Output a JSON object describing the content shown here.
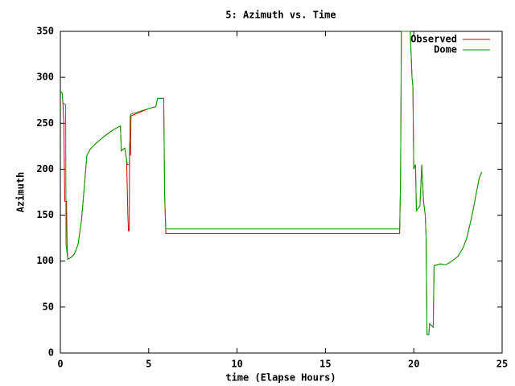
{
  "chart_data": {
    "type": "line",
    "title": "5: Azimuth vs. Time",
    "x_label": "time (Elapse Hours)",
    "y_label": "Azimuth",
    "xlim": [
      0,
      25
    ],
    "xticks": [
      0,
      5,
      10,
      15,
      20,
      25
    ],
    "ylim": [
      0,
      350
    ],
    "yticks": [
      0,
      50,
      100,
      150,
      200,
      250,
      300,
      350
    ],
    "grid": false,
    "legend": "top-right",
    "series": [
      {
        "name": "Observed",
        "color": "#cc0000",
        "x": [
          0,
          0.1,
          0.15,
          0.2,
          0.25,
          0.35,
          0.38,
          0.42,
          0.6,
          0.8,
          1.0,
          1.2,
          1.35,
          1.5,
          1.7,
          2.0,
          2.5,
          3.0,
          3.4,
          3.45,
          3.65,
          3.75,
          3.82,
          3.85,
          3.9,
          3.92,
          3.97,
          4.0,
          4.5,
          5.0,
          5.4,
          5.5,
          5.85,
          5.9,
          5.97,
          19.2,
          19.25,
          19.3,
          19.8,
          19.9,
          19.95,
          20.0,
          20.1,
          20.15,
          20.35,
          20.45,
          20.55,
          20.65,
          20.7,
          20.75,
          20.85,
          20.9,
          21.1,
          21.15,
          21.5,
          21.8,
          22.0,
          22.5,
          22.8,
          23.0,
          23.3,
          23.5,
          23.7,
          23.85
        ],
        "values": [
          285,
          283,
          270,
          250,
          165,
          165,
          118,
          102,
          104,
          108,
          118,
          145,
          180,
          215,
          222,
          228,
          236,
          243,
          247,
          220,
          223,
          210,
          150,
          133,
          133,
          230,
          215,
          258,
          262,
          266,
          268,
          277,
          277,
          172,
          130,
          130,
          185,
          350,
          350,
          300,
          290,
          200,
          205,
          155,
          160,
          205,
          165,
          150,
          125,
          20,
          20,
          32,
          28,
          95,
          97,
          96,
          98,
          105,
          115,
          125,
          150,
          170,
          190,
          197
        ]
      },
      {
        "name": "Dome",
        "color": "#00a000",
        "x": [
          0,
          0.1,
          0.15,
          0.3,
          0.32,
          0.42,
          0.6,
          0.8,
          1.0,
          1.2,
          1.35,
          1.5,
          1.7,
          2.0,
          2.5,
          3.0,
          3.4,
          3.45,
          3.65,
          3.75,
          3.8,
          3.9,
          3.95,
          4.0,
          4.5,
          5.0,
          5.4,
          5.5,
          5.85,
          5.9,
          5.97,
          19.2,
          19.25,
          19.3,
          19.8,
          19.9,
          19.95,
          20.0,
          20.1,
          20.15,
          20.35,
          20.45,
          20.55,
          20.65,
          20.7,
          20.75,
          20.85,
          20.9,
          21.1,
          21.15,
          21.5,
          21.8,
          22.0,
          22.5,
          22.8,
          23.0,
          23.3,
          23.5,
          23.7,
          23.85
        ],
        "values": [
          285,
          283,
          272,
          270,
          118,
          102,
          104,
          108,
          118,
          145,
          180,
          215,
          222,
          228,
          236,
          243,
          247,
          220,
          223,
          210,
          205,
          205,
          258,
          260,
          263,
          266,
          268,
          277,
          277,
          172,
          135,
          135,
          185,
          350,
          350,
          300,
          290,
          200,
          205,
          155,
          160,
          205,
          165,
          150,
          125,
          20,
          20,
          32,
          28,
          95,
          97,
          96,
          98,
          105,
          115,
          125,
          150,
          170,
          190,
          197
        ]
      }
    ]
  }
}
